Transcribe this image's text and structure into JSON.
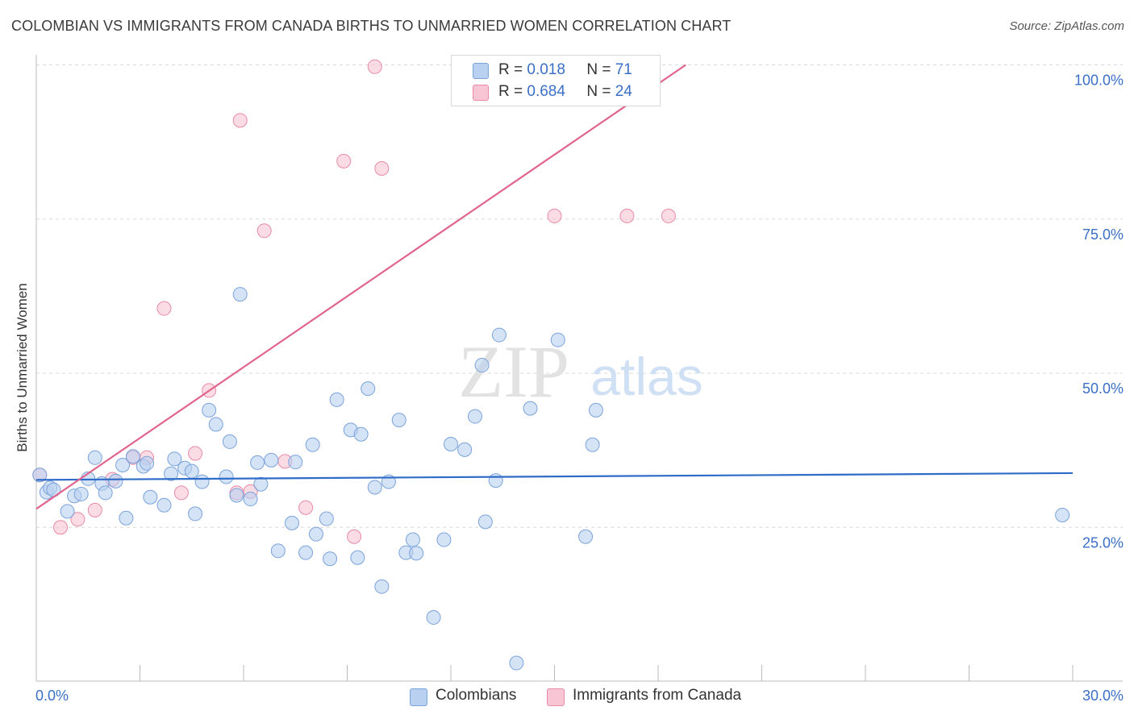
{
  "title": "COLOMBIAN VS IMMIGRANTS FROM CANADA BIRTHS TO UNMARRIED WOMEN CORRELATION CHART",
  "source": "Source: ZipAtlas.com",
  "watermark": {
    "zip": "ZIP",
    "atlas": "atlas"
  },
  "colors": {
    "blue_fill": "#b9d0f0",
    "blue_stroke": "#7aa3dc",
    "blue_line": "#2f6cc8",
    "pink_fill": "#f8c5d4",
    "pink_stroke": "#e88aa8",
    "pink_line": "#e0648e",
    "tick_text": "#3b6fc6",
    "grid": "#d8d8d8"
  },
  "legend": {
    "rows": [
      {
        "r_label": "R = ",
        "r_value": "0.018",
        "n_label": "N = ",
        "n_value": "71"
      },
      {
        "r_label": "R = ",
        "r_value": "0.684",
        "n_label": "N = ",
        "n_value": "24"
      }
    ]
  },
  "bottom_legend": [
    "Colombians",
    "Immigrants from Canada"
  ],
  "chart_data": {
    "type": "scatter",
    "title": "COLOMBIAN VS IMMIGRANTS FROM CANADA BIRTHS TO UNMARRIED WOMEN CORRELATION CHART",
    "xlabel": "",
    "ylabel": "Births to Unmarried Women",
    "xlim": [
      0,
      30
    ],
    "ylim": [
      0,
      100
    ],
    "x_ticks": [
      "0.0%",
      "30.0%"
    ],
    "y_ticks": [
      {
        "value": 25,
        "label": "25.0%"
      },
      {
        "value": 50,
        "label": "50.0%"
      },
      {
        "value": 75,
        "label": "75.0%"
      },
      {
        "value": 100,
        "label": "100.0%"
      }
    ],
    "grid": true,
    "legend_position": "top-center",
    "series": [
      {
        "name": "Colombians",
        "stats": {
          "R": 0.018,
          "N": 71
        },
        "trend": {
          "x": [
            0,
            30
          ],
          "y": [
            32.7,
            33.8
          ]
        },
        "points": [
          [
            0.1,
            33.5
          ],
          [
            0.3,
            30.7
          ],
          [
            0.4,
            31.4
          ],
          [
            0.5,
            31.1
          ],
          [
            0.9,
            27.6
          ],
          [
            1.1,
            30.1
          ],
          [
            1.3,
            30.4
          ],
          [
            1.5,
            32.9
          ],
          [
            1.7,
            36.3
          ],
          [
            1.9,
            32.1
          ],
          [
            2.0,
            30.6
          ],
          [
            2.3,
            32.5
          ],
          [
            2.5,
            35.1
          ],
          [
            2.6,
            26.5
          ],
          [
            2.8,
            36.5
          ],
          [
            3.1,
            34.9
          ],
          [
            3.2,
            35.4
          ],
          [
            3.3,
            29.9
          ],
          [
            3.7,
            28.6
          ],
          [
            3.9,
            33.7
          ],
          [
            4.0,
            36.1
          ],
          [
            4.3,
            34.6
          ],
          [
            4.5,
            34.1
          ],
          [
            4.6,
            27.2
          ],
          [
            4.8,
            32.4
          ],
          [
            5.0,
            44.0
          ],
          [
            5.2,
            41.7
          ],
          [
            5.5,
            33.2
          ],
          [
            5.6,
            38.9
          ],
          [
            5.8,
            30.2
          ],
          [
            5.9,
            62.8
          ],
          [
            6.2,
            29.6
          ],
          [
            6.4,
            35.5
          ],
          [
            6.5,
            32.0
          ],
          [
            6.8,
            35.9
          ],
          [
            7.0,
            21.2
          ],
          [
            7.4,
            25.7
          ],
          [
            7.5,
            35.6
          ],
          [
            7.8,
            20.9
          ],
          [
            8.0,
            38.4
          ],
          [
            8.1,
            23.9
          ],
          [
            8.4,
            26.4
          ],
          [
            8.5,
            19.9
          ],
          [
            8.7,
            45.7
          ],
          [
            9.1,
            40.8
          ],
          [
            9.3,
            20.1
          ],
          [
            9.4,
            40.1
          ],
          [
            9.6,
            47.5
          ],
          [
            9.8,
            31.5
          ],
          [
            10.0,
            15.4
          ],
          [
            10.2,
            32.4
          ],
          [
            10.5,
            42.4
          ],
          [
            10.7,
            20.9
          ],
          [
            10.9,
            23.0
          ],
          [
            11.0,
            20.8
          ],
          [
            11.5,
            10.4
          ],
          [
            11.8,
            23.0
          ],
          [
            12.0,
            38.5
          ],
          [
            12.4,
            37.6
          ],
          [
            12.7,
            43.0
          ],
          [
            12.9,
            51.3
          ],
          [
            13.0,
            25.9
          ],
          [
            13.3,
            32.6
          ],
          [
            13.4,
            56.2
          ],
          [
            13.9,
            3.0
          ],
          [
            14.3,
            44.3
          ],
          [
            15.1,
            55.4
          ],
          [
            15.9,
            23.5
          ],
          [
            16.1,
            38.4
          ],
          [
            16.2,
            44.0
          ],
          [
            29.7,
            27.0
          ]
        ]
      },
      {
        "name": "Immigrants from Canada",
        "stats": {
          "R": 0.684,
          "N": 24
        },
        "trend": {
          "x": [
            0,
            18.8
          ],
          "y": [
            28.0,
            100.0
          ]
        },
        "points": [
          [
            0.1,
            33.5
          ],
          [
            0.7,
            25.0
          ],
          [
            1.2,
            26.3
          ],
          [
            1.7,
            27.8
          ],
          [
            2.2,
            32.8
          ],
          [
            2.8,
            36.3
          ],
          [
            3.2,
            36.3
          ],
          [
            3.7,
            60.5
          ],
          [
            4.2,
            30.6
          ],
          [
            4.6,
            37.0
          ],
          [
            5.0,
            47.2
          ],
          [
            5.8,
            30.6
          ],
          [
            5.9,
            91.0
          ],
          [
            6.2,
            30.8
          ],
          [
            6.6,
            73.1
          ],
          [
            7.2,
            35.7
          ],
          [
            7.8,
            28.2
          ],
          [
            8.9,
            84.4
          ],
          [
            9.2,
            23.5
          ],
          [
            9.8,
            99.7
          ],
          [
            10.0,
            83.2
          ],
          [
            15.0,
            75.5
          ],
          [
            17.1,
            75.5
          ],
          [
            18.3,
            75.5
          ]
        ]
      }
    ]
  }
}
